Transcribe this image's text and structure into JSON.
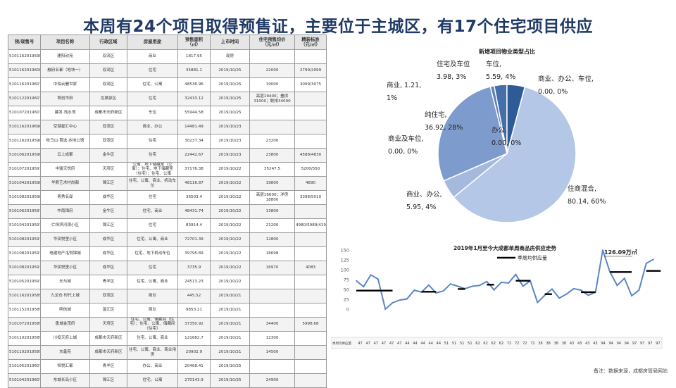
{
  "title": "本周有24个项目取得预售证，主要位于主城区，有17个住宅项目供应",
  "table": {
    "headers": [
      "预/现售号",
      "项目名称",
      "行政区域",
      "房屋用途",
      "预售面积\n（㎡）",
      "上市时间",
      "住宅预售均价\n（元/㎡）",
      "精装标准\n（元/㎡）"
    ],
    "rows": [
      [
        "51011620195985",
        "建阳欣苑",
        "双流区",
        "商业",
        "1817.95",
        "现房",
        "",
        ""
      ],
      [
        "51011620196080",
        "融府名都（地块一）",
        "双流区",
        "住宅",
        "35881.1",
        "2019/10/25",
        "22000",
        "2799/2099"
      ],
      [
        "51011620196079",
        "中海云麓世家",
        "双流区",
        "住宅、公寓",
        "48536.96",
        "2019/10/25",
        "19000",
        "3099/3075"
      ],
      [
        "51011220196076",
        "首创华府",
        "龙泉驿区",
        "住宅",
        "32433.12",
        "2019/10/25",
        "高层19400；叠拼31000；联排34000",
        ""
      ],
      [
        "51010720196074",
        "建发·浅水湾",
        "成都市天府新区",
        "车位",
        "55944.58",
        "2019/10/25",
        "",
        ""
      ],
      [
        "51011620196984",
        "空港星汇中心",
        "双流区",
        "商业、办公",
        "14481.49",
        "2019/10/23",
        "",
        ""
      ],
      [
        "51011620195983",
        "牧马山·首选·本地公馆",
        "双流区",
        "住宅",
        "30237.34",
        "2019/10/23",
        "23200",
        ""
      ],
      [
        "51010620195982",
        "云上成都",
        "金牛区",
        "住宅",
        "22442.67",
        "2019/10/23",
        "23800",
        "4588/4830"
      ],
      [
        "51010720195973",
        "中骏天悦府",
        "天府区",
        "公寓、地下储藏室（公寓）；住宅、地下储藏室（住宅）；住宅、公寓",
        "37176.38",
        "2019/10/22",
        "35247.5",
        "5200/550"
      ],
      [
        "51010420195981",
        "华熙艺术村尚都",
        "锦江区",
        "住宅、公寓、商业、机动车位",
        "48116.87",
        "2019/10/22",
        "19800",
        "4890"
      ],
      [
        "51010820195980",
        "青秀名邸",
        "成华区",
        "住宅",
        "36503.4",
        "2019/10/22",
        "高层16600；洋房18800",
        "3398/5010"
      ],
      [
        "51010620195979",
        "中南锦府",
        "金牛区",
        "住宅、商业",
        "48431.74",
        "2019/10/22",
        "13800",
        ""
      ],
      [
        "51010420195976",
        "仁恒滨河湾小区",
        "锦江区",
        "住宅",
        "83914.4",
        "2019/10/22",
        "21200",
        "4980/5989/4199/5279"
      ],
      [
        "51010820195975",
        "华润悦里小区",
        "成华区",
        "住宅、公寓、商业",
        "72701.39",
        "2019/10/22",
        "12800",
        ""
      ],
      [
        "51010820195974",
        "电建地产洺悦锦城",
        "成华区",
        "住宅、地下机动车位",
        "39795.89",
        "2019/10/22",
        "18698",
        ""
      ],
      [
        "51010820195972",
        "华润悦里小区",
        "成华区",
        "住宅",
        "3735.9",
        "2019/10/22",
        "16970",
        "4083"
      ],
      [
        "51010520195971",
        "光与城",
        "青羊区",
        "住宅、公寓、商业",
        "24513.23",
        "2019/10/22",
        "",
        ""
      ],
      [
        "51011620195892",
        "九龙仓·时代上城",
        "双流区",
        "商业",
        "445.52",
        "2019/10/21",
        "",
        ""
      ],
      [
        "51011520195890",
        "明信城",
        "温江区",
        "商业",
        "9853.21",
        "2019/10/21",
        "",
        ""
      ],
      [
        "51010720195891",
        "香城金茂府",
        "天府区",
        "住宅、公寓、储藏间（住宅）；住宅、公寓、储藏间（住宅）",
        "37350.92",
        "2019/10/21",
        "34400",
        "5998.68"
      ],
      [
        "51011020195895",
        "川投天府上城",
        "成都市天府新区",
        "住宅、公寓、商业",
        "121682.7",
        "2019/10/21",
        "12300",
        ""
      ],
      [
        "51011020195895",
        "东鑫苑",
        "成都市天府新区",
        "住宅、公寓、商业、商业用房",
        "20902.9",
        "2019/10/21",
        "14500",
        ""
      ],
      [
        "51010520196072",
        "恒悦汇都",
        "青羊区",
        "办公、商业",
        "20468.41",
        "2019/10/25",
        "",
        ""
      ],
      [
        "51010420196071",
        "东城长岛小区",
        "锦江区",
        "住宅、公寓",
        "270143.9",
        "2019/10/25",
        "24900",
        ""
      ]
    ]
  },
  "note": "备注：数据来源，成都房管局网站",
  "chart_data": [
    {
      "type": "pie",
      "title": "新增项目物业类型占比",
      "slices": [
        {
          "name": "住商混合",
          "value": 80.14,
          "percent": "60%",
          "color": "#b4c7e7"
        },
        {
          "name": "商业、办公",
          "value": 5.95,
          "percent": "4%",
          "color": "#a5b9dc"
        },
        {
          "name": "商业及车位",
          "value": 0.0,
          "percent": "0%",
          "color": "#8eaadb"
        },
        {
          "name": "纯住宅",
          "value": 36.92,
          "percent": "28%",
          "color": "#7d9bcd"
        },
        {
          "name": "商业",
          "value": 1.21,
          "percent": "1%",
          "color": "#5e7fb8"
        },
        {
          "name": "住宅及车位",
          "value": 3.98,
          "percent": "3%",
          "color": "#466ea8"
        },
        {
          "name": "车位",
          "value": 5.59,
          "percent": "4%",
          "color": "#2e5a96"
        },
        {
          "name": "商业、办公、车位",
          "value": 0.0,
          "percent": "0%",
          "color": "#1f3f75"
        },
        {
          "name": "办公",
          "value": 0.0,
          "percent": "0%",
          "color": "#3a6fb0"
        }
      ],
      "labels": [
        {
          "text": [
            "住商混合,",
            "80.14, 60%"
          ]
        },
        {
          "text": [
            "商业、办公,",
            "5.95, 4%"
          ]
        },
        {
          "text": [
            "商业及车位,",
            "0.00, 0%"
          ]
        },
        {
          "text": [
            "纯住宅,",
            "36.92, 28%"
          ]
        },
        {
          "text": [
            "商业, 1.21,",
            "1%"
          ]
        },
        {
          "text": [
            "住宅及车位",
            "3.98, 3%"
          ]
        },
        {
          "text": [
            "车位,",
            "5.59, 4%"
          ]
        },
        {
          "text": [
            "商业、办公、车位,",
            "0.00, 0%"
          ]
        },
        {
          "text": [
            "办公,",
            "0.00, 0%"
          ]
        }
      ]
    },
    {
      "type": "line",
      "title": "2019年1月至今大成都单周商品房供应走势",
      "ylim": [
        0,
        150
      ],
      "yticks": [
        0,
        25,
        50,
        75,
        100,
        125,
        150
      ],
      "series": [
        {
          "name": "",
          "color": "#5b86c5",
          "values": [
            72,
            57,
            87,
            76,
            0,
            16,
            23,
            26,
            48,
            43,
            61,
            41,
            46,
            64,
            58,
            52,
            58,
            60,
            70,
            49,
            68,
            66,
            88,
            58,
            72,
            17,
            35,
            51,
            28,
            38,
            52,
            48,
            35,
            43,
            150,
            94,
            60,
            78,
            34,
            48,
            116,
            126
          ]
        },
        {
          "name": "季周均供应量",
          "color": "#000000",
          "segments": [
            {
              "value": 47,
              "from": 0,
              "to": 5
            },
            {
              "value": 44,
              "from": 9,
              "to": 11
            },
            {
              "value": 51,
              "from": 14,
              "to": 15
            },
            {
              "value": 62,
              "from": 18,
              "to": 19
            },
            {
              "value": 72,
              "from": 22,
              "to": 24
            },
            {
              "value": 38,
              "from": 26,
              "to": 27
            },
            {
              "value": 43,
              "from": 31,
              "to": 33
            },
            {
              "value": 94,
              "from": 35,
              "to": 38
            },
            {
              "value": 97,
              "from": 40,
              "to": 42
            }
          ]
        }
      ],
      "annotation": "126.09万㎡",
      "table_row_label": "季周均供应量",
      "table_row": [
        47,
        47,
        47,
        47,
        47,
        47,
        44,
        44,
        44,
        44,
        44,
        51,
        51,
        51,
        51,
        62,
        62,
        62,
        62,
        72,
        72,
        72,
        72,
        38,
        38,
        38,
        38,
        43,
        43,
        43,
        43,
        94,
        94,
        94,
        94,
        97,
        97,
        97,
        97
      ]
    }
  ]
}
